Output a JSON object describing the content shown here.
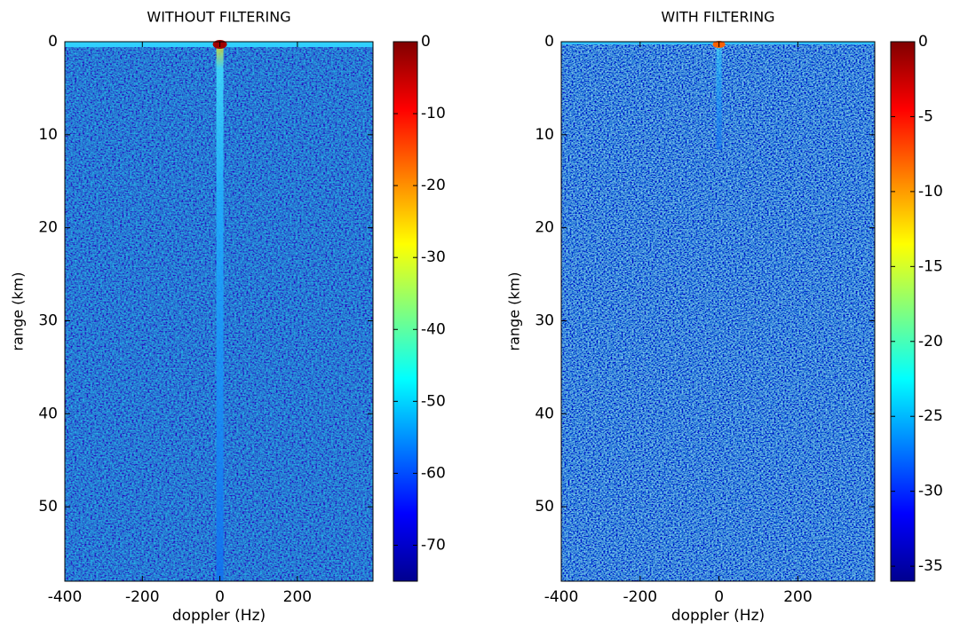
{
  "chart_data": [
    {
      "type": "heatmap",
      "title": "WITHOUT FILTERING",
      "xlabel": "doppler (Hz)",
      "ylabel": "range (km)",
      "xlim": [
        -400,
        395
      ],
      "xticks": [
        -400,
        -200,
        0,
        200
      ],
      "ylim": [
        0,
        58
      ],
      "yticks": [
        0,
        10,
        20,
        30,
        40,
        50
      ],
      "y_reversed": true,
      "colormap": "jet",
      "clim": [
        -75,
        0
      ],
      "cticks": [
        0,
        -10,
        -20,
        -30,
        -40,
        -50,
        -60,
        -70
      ]
    },
    {
      "type": "heatmap",
      "title": "WITH FILTERING",
      "xlabel": "doppler (Hz)",
      "ylabel": "range (km)",
      "xlim": [
        -400,
        395
      ],
      "xticks": [
        -400,
        -200,
        0,
        200
      ],
      "ylim": [
        0,
        58
      ],
      "yticks": [
        0,
        10,
        20,
        30,
        40,
        50
      ],
      "y_reversed": true,
      "colormap": "jet",
      "clim": [
        -36,
        0
      ],
      "cticks": [
        0,
        -5,
        -10,
        -15,
        -20,
        -25,
        -30,
        -35
      ]
    }
  ]
}
